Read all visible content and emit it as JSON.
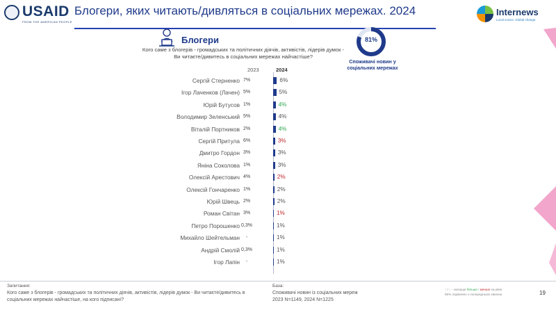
{
  "header": {
    "title": "Блогери, яких читають/дивляться в соціальних мережах. 2024",
    "usaid_word": "USAID",
    "usaid_tagline": "FROM THE AMERICAN PEOPLE",
    "internews_word": "Internews",
    "internews_tagline": "Local voices. Global change."
  },
  "section": {
    "heading": "Блогери",
    "question": "Кого саме з блогерів - громадських та політичних діячів, активістів, лідерів думок - Ви читаєте/дивитесь в соціальних мережах найчастіше?"
  },
  "donut": {
    "value_label": "81%",
    "value": 81,
    "caption": "Споживачі новин у соціальних мережах"
  },
  "colors": {
    "bar": "#1f3a8a",
    "up": "#2fa84f",
    "down": "#c0272d",
    "accent_pink": "#f2a6cc"
  },
  "chart_data": {
    "type": "bar",
    "orientation": "horizontal",
    "column_headers": {
      "y2023": "2023",
      "y2024": "2024"
    },
    "categories": [
      "Сергій Стерненко",
      "Ігор Лаченков (Лачен)",
      "Юрій Бутусов",
      "Володимир Зеленський",
      "Віталій Портников",
      "Сергій Притула",
      "Дмитро Гордон",
      "Яніна Соколова",
      "Олексій Арестович",
      "Олексій Гончаренко",
      "Юрій Швець",
      "Роман Світан",
      "Петро Порошенко",
      "Михайло Шейтельман",
      "Андрій Смолій",
      "Ігор Лапін"
    ],
    "values_2024": [
      6,
      5,
      4,
      4,
      4,
      3,
      3,
      3,
      2,
      2,
      2,
      1,
      1,
      1,
      1,
      1
    ],
    "labels_2024": [
      "6%",
      "5%",
      "4%",
      "4%",
      "4%",
      "3%",
      "3%",
      "3%",
      "2%",
      "2%",
      "2%",
      "1%",
      "1%",
      "1%",
      "1%",
      "1%"
    ],
    "change_2024": [
      "none",
      "none",
      "up",
      "none",
      "up",
      "down",
      "none",
      "none",
      "down",
      "none",
      "none",
      "down",
      "none",
      "none",
      "none",
      "none"
    ],
    "labels_2023": [
      "7%",
      "5%",
      "1%",
      "5%",
      "2%",
      "6%",
      "3%",
      "1%",
      "4%",
      "1%",
      "2%",
      "3%",
      "0,3%",
      "-",
      "0,3%",
      "-"
    ],
    "xlim": [
      0,
      100
    ]
  },
  "footer": {
    "question_label": "Запитання:",
    "question_text": "Кого саме з блогерів - громадських та політичних діячів, активістів, лідерів думок -  Ви читаєте/дивитесь в соціальних мережах найчастіше, на кого підписані?",
    "base_label": "База:",
    "base_text_1": "Споживачі новин із соціальних мереж",
    "base_text_2": "2023  N=1149, 2024  N=1225",
    "legend_line_1_prefix": "↑ / ↓ - значуще ",
    "legend_more": "більше",
    "legend_sep": " / ",
    "legend_less": "менше",
    "legend_line_1_suffix": " на рівні",
    "legend_line_2": "95% порівняно з попередньою хвилею",
    "page_number": "19"
  }
}
